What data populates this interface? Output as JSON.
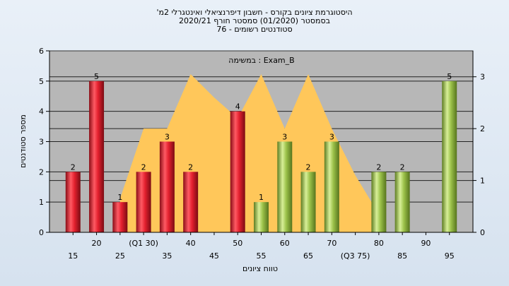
{
  "chart_data": {
    "type": "bar",
    "title_lines": [
      "'היסטוגרמת ציונים בקורס - חשבון דיפרנציאלי ואינטגרלי 2מ",
      "בסמסטר  (01/2020)  סמסטר חורף  2020/21",
      "סטודנטים רשומים - 76"
    ],
    "xlabel": "טווח ציונים",
    "ylabel": "מספר סטודנטים",
    "annotation": "במשימה : Exam_B",
    "ylim": [
      0,
      6
    ],
    "y_ticks": [
      0,
      1,
      2,
      3,
      4,
      5,
      6
    ],
    "y2lim": [
      0,
      3.5
    ],
    "y2_ticks": [
      0,
      1,
      2,
      3
    ],
    "x_ticks_low": [
      "15",
      "25",
      "35",
      "45",
      "55",
      "65",
      "(Q3 75)",
      "85",
      "95"
    ],
    "x_ticks_high": [
      "20",
      "(Q1 30)",
      "40",
      "50",
      "60",
      "70",
      "80",
      "90"
    ],
    "categories": [
      "15",
      "20",
      "25",
      "30",
      "35",
      "40",
      "45",
      "50",
      "55",
      "60",
      "65",
      "70",
      "75",
      "80",
      "85",
      "90",
      "95"
    ],
    "values": [
      2,
      5,
      1,
      2,
      3,
      2,
      null,
      4,
      1,
      3,
      2,
      3,
      null,
      2,
      2,
      null,
      5
    ],
    "bar_colors": [
      "red",
      "red",
      "red",
      "red",
      "red",
      "red",
      null,
      "red",
      "green",
      "green",
      "green",
      "green",
      null,
      "green",
      "green",
      null,
      "green"
    ],
    "area_series": {
      "categories": [
        "25",
        "30",
        "35",
        "40",
        "45",
        "50",
        "55",
        "60",
        "65",
        "70",
        "75",
        "80"
      ],
      "values": [
        0.65,
        2.0,
        2.0,
        3.05,
        2.6,
        2.2,
        3.05,
        2.0,
        3.05,
        2.0,
        1.1,
        0.35
      ]
    },
    "colors": {
      "red_bar": "#e3202e",
      "green_bar": "#9cc24a",
      "area": "#ffc75a",
      "plot_bg": "#b7b7b7",
      "grid": "#222222"
    },
    "grid": true
  }
}
